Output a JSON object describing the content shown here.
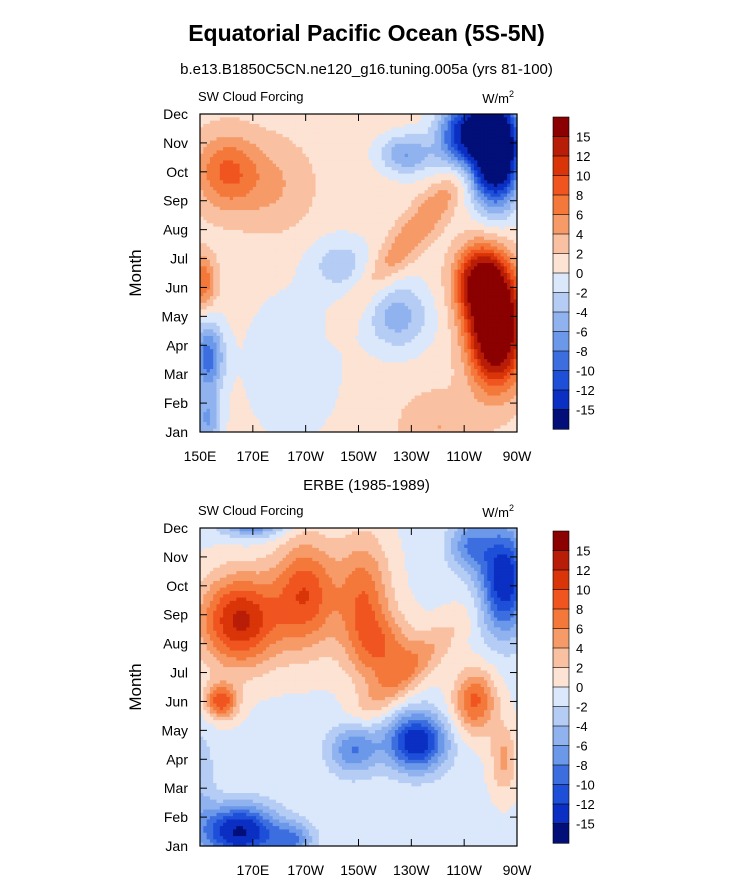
{
  "title": "Equatorial Pacific Ocean (5S-5N)",
  "subtitles": [
    "b.e13.B1850C5CN.ne120_g16.tuning.005a (yrs 81-100)",
    "ERBE (1985-1989)"
  ],
  "colorbar": {
    "levels": [
      "15",
      "12",
      "10",
      "8",
      "6",
      "4",
      "2",
      "0",
      "-2",
      "-4",
      "-6",
      "-8",
      "-10",
      "-12",
      "-15"
    ],
    "colors": [
      "#8b0000",
      "#b81d07",
      "#d93508",
      "#f05520",
      "#f4783a",
      "#f69a68",
      "#f9c1a2",
      "#fde3d3",
      "#dbe8fb",
      "#b5cdf4",
      "#90b3ef",
      "#6c98ea",
      "#3d6ee0",
      "#1d4fd9",
      "#0a2fc2",
      "#020f78"
    ]
  },
  "chart_data": [
    {
      "type": "heatmap",
      "panel_title": "SW Cloud Forcing",
      "units": "W/m²",
      "ylabel": "Month",
      "y_categories": [
        "Jan",
        "Feb",
        "Mar",
        "Apr",
        "May",
        "Jun",
        "Jul",
        "Aug",
        "Sep",
        "Oct",
        "Nov",
        "Dec"
      ],
      "x_ticks": [
        "150E",
        "170E",
        "170W",
        "150W",
        "130W",
        "110W",
        "90W"
      ],
      "xlim_deg_east": [
        150,
        270
      ],
      "contour_levels": [
        -15,
        -12,
        -10,
        -8,
        -6,
        -4,
        -2,
        0,
        2,
        4,
        6,
        8,
        10,
        12,
        15
      ],
      "features": [
        {
          "region": "east Pacific (105W-90W)",
          "months": "Mar-Jun",
          "value_approx": 16
        },
        {
          "region": "east Pacific (110W-90W)",
          "months": "Sep-Nov",
          "value_approx": -16
        },
        {
          "region": "150E-170E",
          "months": "Sep-Oct",
          "value_approx": 8
        },
        {
          "region": "150W-130W",
          "months": "Apr-May",
          "value_approx": -5
        },
        {
          "region": "150E",
          "months": "Mar-Apr",
          "value_approx": -9
        }
      ]
    },
    {
      "type": "heatmap",
      "panel_title": "SW Cloud Forcing",
      "units": "W/m²",
      "ylabel": "Month",
      "y_categories": [
        "Jan",
        "Feb",
        "Mar",
        "Apr",
        "May",
        "Jun",
        "Jul",
        "Aug",
        "Sep",
        "Oct",
        "Nov",
        "Dec"
      ],
      "x_ticks": [
        "170E",
        "170W",
        "150W",
        "130W",
        "110W",
        "90W"
      ],
      "xlim_deg_east": [
        150,
        270
      ],
      "contour_levels": [
        -15,
        -12,
        -10,
        -8,
        -6,
        -4,
        -2,
        0,
        2,
        4,
        6,
        8,
        10,
        12,
        15
      ],
      "features": [
        {
          "region": "150E-170W",
          "months": "Aug-Sep",
          "value_approx": 13
        },
        {
          "region": "150W-130W",
          "months": "Mar-Apr",
          "value_approx": -13
        },
        {
          "region": "150E-170E",
          "months": "Jan-Feb",
          "value_approx": -14
        },
        {
          "region": "160E-175E",
          "months": "Dec",
          "value_approx": -12
        },
        {
          "region": "100W-90W",
          "months": "Sep-Oct",
          "value_approx": -12
        },
        {
          "region": "110W-100W",
          "months": "May-Jun",
          "value_approx": 9
        }
      ]
    }
  ]
}
